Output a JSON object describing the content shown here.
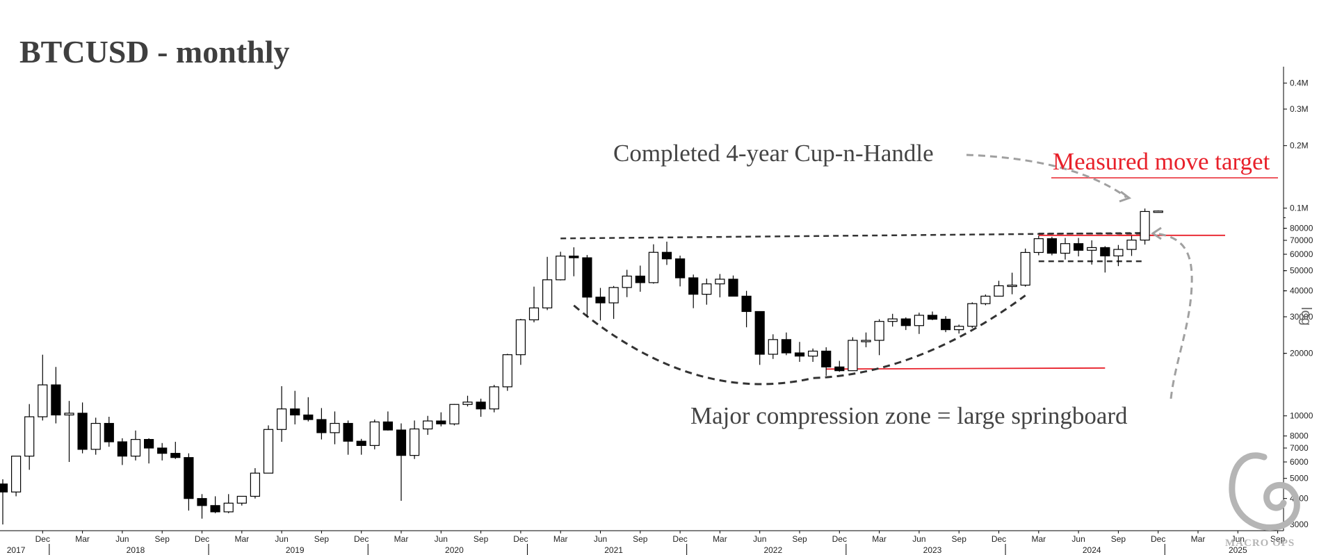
{
  "title": "BTCUSD - monthly",
  "colors": {
    "up": "#ffffff",
    "down": "#000000",
    "outline": "#000000",
    "target": "#e8202a",
    "trend": "#333333",
    "arrow": "#a0a0a0",
    "text": "#444444"
  },
  "chart_data": {
    "type": "candlestick",
    "scale": "log",
    "ylim": [
      2800,
      480000
    ],
    "y_axis_label": "log",
    "y_ticks": [
      {
        "v": 3000,
        "label": "3000"
      },
      {
        "v": 4000,
        "label": "4000"
      },
      {
        "v": 5000,
        "label": "5000"
      },
      {
        "v": 6000,
        "label": "6000"
      },
      {
        "v": 7000,
        "label": "7000"
      },
      {
        "v": 8000,
        "label": "8000"
      },
      {
        "v": 10000,
        "label": "10000"
      },
      {
        "v": 20000,
        "label": "20000"
      },
      {
        "v": 30000,
        "label": "30000"
      },
      {
        "v": 40000,
        "label": "40000"
      },
      {
        "v": 50000,
        "label": "50000"
      },
      {
        "v": 60000,
        "label": "60000"
      },
      {
        "v": 70000,
        "label": "70000"
      },
      {
        "v": 80000,
        "label": "80000"
      },
      {
        "v": 100000,
        "label": "0.1M"
      },
      {
        "v": 200000,
        "label": "0.2M"
      },
      {
        "v": 300000,
        "label": "0.3M"
      },
      {
        "v": 400000,
        "label": "0.4M"
      }
    ],
    "x_month_ticks": [
      {
        "date": "2017-12",
        "label": "Dec"
      },
      {
        "date": "2018-03",
        "label": "Mar"
      },
      {
        "date": "2018-06",
        "label": "Jun"
      },
      {
        "date": "2018-09",
        "label": "Sep"
      },
      {
        "date": "2018-12",
        "label": "Dec"
      },
      {
        "date": "2019-03",
        "label": "Mar"
      },
      {
        "date": "2019-06",
        "label": "Jun"
      },
      {
        "date": "2019-09",
        "label": "Sep"
      },
      {
        "date": "2019-12",
        "label": "Dec"
      },
      {
        "date": "2020-03",
        "label": "Mar"
      },
      {
        "date": "2020-06",
        "label": "Jun"
      },
      {
        "date": "2020-09",
        "label": "Sep"
      },
      {
        "date": "2020-12",
        "label": "Dec"
      },
      {
        "date": "2021-03",
        "label": "Mar"
      },
      {
        "date": "2021-06",
        "label": "Jun"
      },
      {
        "date": "2021-09",
        "label": "Sep"
      },
      {
        "date": "2021-12",
        "label": "Dec"
      },
      {
        "date": "2022-03",
        "label": "Mar"
      },
      {
        "date": "2022-06",
        "label": "Jun"
      },
      {
        "date": "2022-09",
        "label": "Sep"
      },
      {
        "date": "2022-12",
        "label": "Dec"
      },
      {
        "date": "2023-03",
        "label": "Mar"
      },
      {
        "date": "2023-06",
        "label": "Jun"
      },
      {
        "date": "2023-09",
        "label": "Sep"
      },
      {
        "date": "2023-12",
        "label": "Dec"
      },
      {
        "date": "2024-03",
        "label": "Mar"
      },
      {
        "date": "2024-06",
        "label": "Jun"
      },
      {
        "date": "2024-09",
        "label": "Sep"
      },
      {
        "date": "2024-12",
        "label": "Dec"
      },
      {
        "date": "2025-03",
        "label": "Mar"
      },
      {
        "date": "2025-06",
        "label": "Jun"
      },
      {
        "date": "2025-09",
        "label": "Sep"
      }
    ],
    "x_year_labels": [
      {
        "date": "2017-10",
        "label": "2017"
      },
      {
        "date": "2018-07",
        "label": "2018"
      },
      {
        "date": "2019-07",
        "label": "2019"
      },
      {
        "date": "2020-07",
        "label": "2020"
      },
      {
        "date": "2021-07",
        "label": "2021"
      },
      {
        "date": "2022-07",
        "label": "2022"
      },
      {
        "date": "2023-07",
        "label": "2023"
      },
      {
        "date": "2024-07",
        "label": "2024"
      },
      {
        "date": "2025-06",
        "label": "2025"
      }
    ],
    "x_year_boundaries": [
      "2018-01",
      "2019-01",
      "2020-01",
      "2021-01",
      "2022-01",
      "2023-01",
      "2024-01",
      "2025-01"
    ],
    "x_range": [
      "2017-09",
      "2025-11"
    ],
    "candles": [
      {
        "date": "2017-09",
        "o": 4700,
        "h": 4950,
        "l": 3000,
        "c": 4300
      },
      {
        "date": "2017-10",
        "o": 4300,
        "h": 6400,
        "l": 4100,
        "c": 6400
      },
      {
        "date": "2017-11",
        "o": 6400,
        "h": 11400,
        "l": 5500,
        "c": 9900
      },
      {
        "date": "2017-12",
        "o": 9900,
        "h": 19700,
        "l": 9500,
        "c": 14100
      },
      {
        "date": "2018-01",
        "o": 14100,
        "h": 17200,
        "l": 9200,
        "c": 10100
      },
      {
        "date": "2018-02",
        "o": 10100,
        "h": 11800,
        "l": 6000,
        "c": 10300
      },
      {
        "date": "2018-03",
        "o": 10300,
        "h": 11600,
        "l": 6600,
        "c": 6900
      },
      {
        "date": "2018-04",
        "o": 6900,
        "h": 9800,
        "l": 6500,
        "c": 9200
      },
      {
        "date": "2018-05",
        "o": 9200,
        "h": 9900,
        "l": 7100,
        "c": 7500
      },
      {
        "date": "2018-06",
        "o": 7500,
        "h": 7800,
        "l": 5800,
        "c": 6400
      },
      {
        "date": "2018-07",
        "o": 6400,
        "h": 8500,
        "l": 6100,
        "c": 7700
      },
      {
        "date": "2018-08",
        "o": 7700,
        "h": 7800,
        "l": 5900,
        "c": 7000
      },
      {
        "date": "2018-09",
        "o": 7000,
        "h": 7400,
        "l": 6100,
        "c": 6600
      },
      {
        "date": "2018-10",
        "o": 6600,
        "h": 7500,
        "l": 6200,
        "c": 6300
      },
      {
        "date": "2018-11",
        "o": 6300,
        "h": 6600,
        "l": 3500,
        "c": 4000
      },
      {
        "date": "2018-12",
        "o": 4000,
        "h": 4200,
        "l": 3200,
        "c": 3700
      },
      {
        "date": "2019-01",
        "o": 3700,
        "h": 4100,
        "l": 3400,
        "c": 3450
      },
      {
        "date": "2019-02",
        "o": 3450,
        "h": 4200,
        "l": 3400,
        "c": 3800
      },
      {
        "date": "2019-03",
        "o": 3800,
        "h": 4100,
        "l": 3700,
        "c": 4100
      },
      {
        "date": "2019-04",
        "o": 4100,
        "h": 5600,
        "l": 4000,
        "c": 5300
      },
      {
        "date": "2019-05",
        "o": 5300,
        "h": 9000,
        "l": 5300,
        "c": 8600
      },
      {
        "date": "2019-06",
        "o": 8600,
        "h": 13900,
        "l": 7500,
        "c": 10800
      },
      {
        "date": "2019-07",
        "o": 10800,
        "h": 13200,
        "l": 9100,
        "c": 10100
      },
      {
        "date": "2019-08",
        "o": 10100,
        "h": 12300,
        "l": 9400,
        "c": 9600
      },
      {
        "date": "2019-09",
        "o": 9600,
        "h": 10900,
        "l": 7700,
        "c": 8300
      },
      {
        "date": "2019-10",
        "o": 8300,
        "h": 10500,
        "l": 7300,
        "c": 9200
      },
      {
        "date": "2019-11",
        "o": 9200,
        "h": 9500,
        "l": 6500,
        "c": 7550
      },
      {
        "date": "2019-12",
        "o": 7550,
        "h": 7750,
        "l": 6500,
        "c": 7200
      },
      {
        "date": "2020-01",
        "o": 7200,
        "h": 9600,
        "l": 6900,
        "c": 9350
      },
      {
        "date": "2020-02",
        "o": 9350,
        "h": 10500,
        "l": 8500,
        "c": 8550
      },
      {
        "date": "2020-03",
        "o": 8550,
        "h": 9200,
        "l": 3900,
        "c": 6450
      },
      {
        "date": "2020-04",
        "o": 6450,
        "h": 9500,
        "l": 6200,
        "c": 8650
      },
      {
        "date": "2020-05",
        "o": 8650,
        "h": 10000,
        "l": 8100,
        "c": 9450
      },
      {
        "date": "2020-06",
        "o": 9450,
        "h": 10400,
        "l": 8900,
        "c": 9150
      },
      {
        "date": "2020-07",
        "o": 9150,
        "h": 11400,
        "l": 9000,
        "c": 11350
      },
      {
        "date": "2020-08",
        "o": 11350,
        "h": 12500,
        "l": 11100,
        "c": 11650
      },
      {
        "date": "2020-09",
        "o": 11650,
        "h": 12100,
        "l": 9900,
        "c": 10800
      },
      {
        "date": "2020-10",
        "o": 10800,
        "h": 14100,
        "l": 10400,
        "c": 13800
      },
      {
        "date": "2020-11",
        "o": 13800,
        "h": 19900,
        "l": 13200,
        "c": 19700
      },
      {
        "date": "2020-12",
        "o": 19700,
        "h": 29300,
        "l": 17600,
        "c": 29000
      },
      {
        "date": "2021-01",
        "o": 29000,
        "h": 41900,
        "l": 28200,
        "c": 33100
      },
      {
        "date": "2021-02",
        "o": 33100,
        "h": 58300,
        "l": 32300,
        "c": 45200
      },
      {
        "date": "2021-03",
        "o": 45200,
        "h": 61700,
        "l": 44900,
        "c": 58800
      },
      {
        "date": "2021-04",
        "o": 58800,
        "h": 64800,
        "l": 47000,
        "c": 57700
      },
      {
        "date": "2021-05",
        "o": 57700,
        "h": 59500,
        "l": 30000,
        "c": 37300
      },
      {
        "date": "2021-06",
        "o": 37300,
        "h": 41300,
        "l": 28800,
        "c": 35000
      },
      {
        "date": "2021-07",
        "o": 35000,
        "h": 42200,
        "l": 29300,
        "c": 41500
      },
      {
        "date": "2021-08",
        "o": 41500,
        "h": 50500,
        "l": 37300,
        "c": 47100
      },
      {
        "date": "2021-09",
        "o": 47100,
        "h": 52900,
        "l": 39600,
        "c": 43800
      },
      {
        "date": "2021-10",
        "o": 43800,
        "h": 67000,
        "l": 43300,
        "c": 61300
      },
      {
        "date": "2021-11",
        "o": 61300,
        "h": 69000,
        "l": 53300,
        "c": 57000
      },
      {
        "date": "2021-12",
        "o": 57000,
        "h": 59100,
        "l": 42000,
        "c": 46200
      },
      {
        "date": "2022-01",
        "o": 46200,
        "h": 47900,
        "l": 33000,
        "c": 38500
      },
      {
        "date": "2022-02",
        "o": 38500,
        "h": 45800,
        "l": 34300,
        "c": 43200
      },
      {
        "date": "2022-03",
        "o": 43200,
        "h": 48200,
        "l": 37200,
        "c": 45500
      },
      {
        "date": "2022-04",
        "o": 45500,
        "h": 47400,
        "l": 37700,
        "c": 37700
      },
      {
        "date": "2022-05",
        "o": 37700,
        "h": 40000,
        "l": 26700,
        "c": 31800
      },
      {
        "date": "2022-06",
        "o": 31800,
        "h": 31900,
        "l": 17600,
        "c": 19800
      },
      {
        "date": "2022-07",
        "o": 19800,
        "h": 24700,
        "l": 18800,
        "c": 23300
      },
      {
        "date": "2022-08",
        "o": 23300,
        "h": 25200,
        "l": 19600,
        "c": 20100
      },
      {
        "date": "2022-09",
        "o": 20100,
        "h": 22700,
        "l": 18200,
        "c": 19400
      },
      {
        "date": "2022-10",
        "o": 19400,
        "h": 21100,
        "l": 18200,
        "c": 20500
      },
      {
        "date": "2022-11",
        "o": 20500,
        "h": 21400,
        "l": 15600,
        "c": 17200
      },
      {
        "date": "2022-12",
        "o": 17200,
        "h": 18400,
        "l": 16300,
        "c": 16500
      },
      {
        "date": "2023-01",
        "o": 16500,
        "h": 23900,
        "l": 16500,
        "c": 23100
      },
      {
        "date": "2023-02",
        "o": 23100,
        "h": 25200,
        "l": 21400,
        "c": 23100
      },
      {
        "date": "2023-03",
        "o": 23100,
        "h": 29200,
        "l": 19600,
        "c": 28500
      },
      {
        "date": "2023-04",
        "o": 28500,
        "h": 31000,
        "l": 26900,
        "c": 29300
      },
      {
        "date": "2023-05",
        "o": 29300,
        "h": 29800,
        "l": 25900,
        "c": 27200
      },
      {
        "date": "2023-06",
        "o": 27200,
        "h": 31400,
        "l": 24800,
        "c": 30500
      },
      {
        "date": "2023-07",
        "o": 30500,
        "h": 31800,
        "l": 28900,
        "c": 29200
      },
      {
        "date": "2023-08",
        "o": 29200,
        "h": 30200,
        "l": 25300,
        "c": 26000
      },
      {
        "date": "2023-09",
        "o": 26000,
        "h": 27500,
        "l": 24900,
        "c": 27000
      },
      {
        "date": "2023-10",
        "o": 27000,
        "h": 35200,
        "l": 26500,
        "c": 34700
      },
      {
        "date": "2023-11",
        "o": 34700,
        "h": 38400,
        "l": 34100,
        "c": 37700
      },
      {
        "date": "2023-12",
        "o": 37700,
        "h": 44700,
        "l": 37600,
        "c": 42300
      },
      {
        "date": "2024-01",
        "o": 42300,
        "h": 48900,
        "l": 38500,
        "c": 42600
      },
      {
        "date": "2024-02",
        "o": 42600,
        "h": 63900,
        "l": 41900,
        "c": 61200
      },
      {
        "date": "2024-03",
        "o": 61200,
        "h": 73800,
        "l": 59300,
        "c": 71300
      },
      {
        "date": "2024-04",
        "o": 71300,
        "h": 72800,
        "l": 59300,
        "c": 60700
      },
      {
        "date": "2024-05",
        "o": 60700,
        "h": 71900,
        "l": 56600,
        "c": 67500
      },
      {
        "date": "2024-06",
        "o": 67500,
        "h": 71900,
        "l": 58600,
        "c": 62700
      },
      {
        "date": "2024-07",
        "o": 62700,
        "h": 70000,
        "l": 53500,
        "c": 64600
      },
      {
        "date": "2024-08",
        "o": 64600,
        "h": 65600,
        "l": 49000,
        "c": 58900
      },
      {
        "date": "2024-09",
        "o": 58900,
        "h": 66500,
        "l": 52600,
        "c": 63300
      },
      {
        "date": "2024-10",
        "o": 63300,
        "h": 73600,
        "l": 58900,
        "c": 70200
      },
      {
        "date": "2024-11",
        "o": 70200,
        "h": 99600,
        "l": 66800,
        "c": 96400
      },
      {
        "date": "2024-12",
        "o": 96400,
        "h": 97500,
        "l": 95500,
        "c": 96900
      }
    ]
  },
  "overlays": {
    "rim_line": {
      "from": [
        "2021-03",
        71500
      ],
      "to": [
        "2024-11",
        76000
      ]
    },
    "handle_top": {
      "from": [
        "2024-03",
        75500
      ],
      "to": [
        "2024-11",
        75500
      ]
    },
    "handle_bottom": {
      "from": [
        "2024-03",
        55500
      ],
      "to": [
        "2024-11",
        55500
      ]
    },
    "cup_curve": {
      "start": [
        "2021-04",
        34000
      ],
      "bottom": [
        "2022-10",
        15200
      ],
      "end": [
        "2024-02",
        38000
      ]
    },
    "target_line": {
      "from": [
        "2024-03",
        74000
      ],
      "to": [
        "2024-12",
        74000
      ]
    },
    "support_line": {
      "from": [
        "2022-11",
        16800
      ],
      "to": [
        "2024-08",
        17000
      ]
    }
  },
  "annotations": {
    "cup_handle": "Completed 4-year Cup-n-Handle",
    "target": "Measured move target",
    "compression": "Major compression zone = large springboard"
  }
}
